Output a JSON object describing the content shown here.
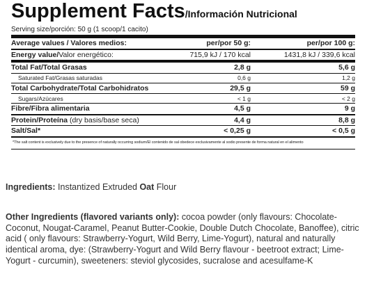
{
  "header": {
    "title": "Supplement Facts",
    "subtitle": "/Información Nutricional"
  },
  "serving": "Serving size/porción: 50 g (1 scoop/1 cacito)",
  "table": {
    "head": [
      "Average values / Valores medios:",
      "per/por 50 g:",
      "per/por 100 g:"
    ],
    "energy": {
      "label": "Energy value/",
      "label_es": "Valor energético:",
      "v50": "715,9 kJ / 170 kcal",
      "v100": "1431,8 kJ / 339,6 kcal"
    },
    "rows": [
      {
        "label": "Total Fat/",
        "label_es": "Total Grasas",
        "v50": "2,8 g",
        "v100": "5,6 g"
      },
      {
        "label": "Saturated Fat/",
        "label_es": "Grasas saturadas",
        "v50": "0,6 g",
        "v100": "1,2 g"
      },
      {
        "label": "Total Carbohydrate/",
        "label_es": "Total Carbohidratos",
        "v50": "29,5 g",
        "v100": "59 g"
      },
      {
        "label": "Sugars/",
        "label_es": "Azúcares",
        "v50": "< 1 g",
        "v100": "< 2 g"
      },
      {
        "label": "Fibre/",
        "label_es": "Fibra alimentaria",
        "v50": "4,5 g",
        "v100": "9 g"
      },
      {
        "label": "Protein/",
        "label_es": "Proteína",
        "note": " (dry basis/base seca)",
        "v50": "4,4 g",
        "v100": "8,8 g"
      },
      {
        "label": "Salt/",
        "label_es": "Sal*",
        "v50": "< 0,25 g",
        "v100": "< 0,5 g"
      }
    ],
    "footnote": "*The salt content is exclusively due to the presence of naturally occurring sodium/El contenido de sal obedece exclusivamente al sodio presente de forma natural en el alimento"
  },
  "ingredients": {
    "label": "Ingredients:",
    "parts": [
      " Instantized Extruded ",
      "Oat",
      " Flour"
    ]
  },
  "other": {
    "label": "Other Ingredients (flavored variants only):",
    "text": " cocoa powder (only flavours: Chocolate-Coconut, Nougat-Caramel, Peanut Butter-Cookie, Double Dutch Chocolate, Banoffee), citric acid ( only flavours: Strawberry-Yogurt, Wild Berry, Lime-Yogurt), natural and naturally identical aroma, dye: (Strawberry-Yogurt and Wild Berry flavour - beetroot extract; Lime-Yogurt - curcumin), sweeteners: steviol glycosides, sucralose and acesulfame-K"
  }
}
